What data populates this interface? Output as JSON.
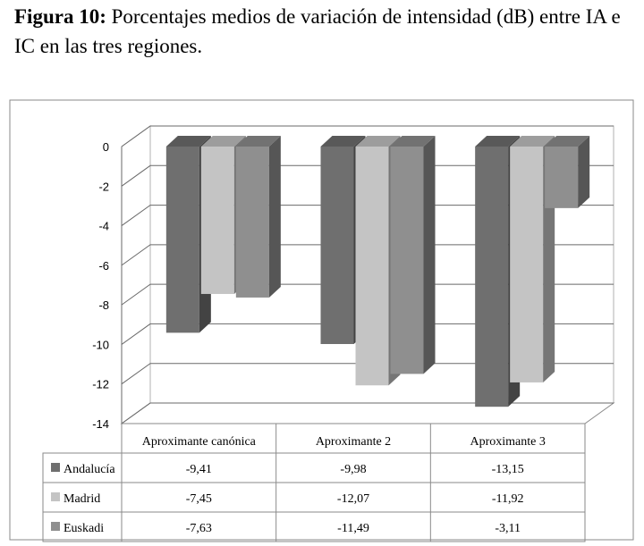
{
  "caption": {
    "label": "Figura 10:",
    "text": "Porcentajes medios de variación de intensidad (dB) entre IA e IC en las tres regiones."
  },
  "chart_data": {
    "type": "bar",
    "categories": [
      "Aproximante canónica",
      "Aproximante 2",
      "Aproximante 3"
    ],
    "series": [
      {
        "name": "Andalucía",
        "values": [
          -9.41,
          -9.98,
          -13.15
        ],
        "labels": [
          "-9,41",
          "-9,98",
          "-13,15"
        ],
        "color": "#6f6f6f"
      },
      {
        "name": "Madrid",
        "values": [
          -7.45,
          -12.07,
          -11.92
        ],
        "labels": [
          "-7,45",
          "-12,07",
          "-11,92"
        ],
        "color": "#c4c4c4"
      },
      {
        "name": "Euskadi",
        "values": [
          -7.63,
          -11.49,
          -3.11
        ],
        "labels": [
          "-7,63",
          "-11,49",
          "-3,11"
        ],
        "color": "#8f8f8f"
      }
    ],
    "ylim": [
      -14,
      0
    ],
    "yticks": [
      0,
      -2,
      -4,
      -6,
      -8,
      -10,
      -12,
      -14
    ],
    "grid": true,
    "legend": "data-table",
    "bar_3d": true
  }
}
